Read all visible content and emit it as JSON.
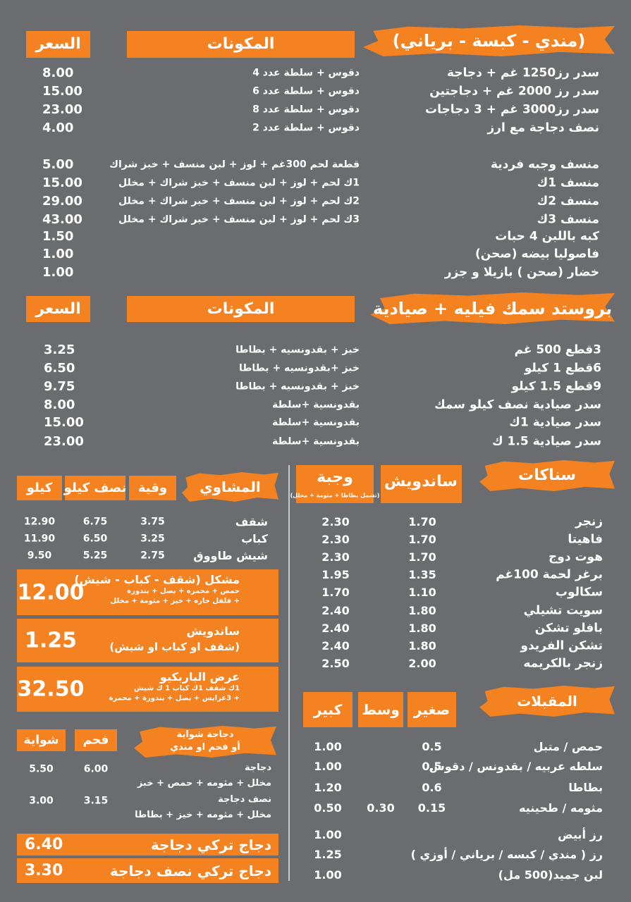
{
  "rice_section": {
    "title": "(مندي - كبسة - برياني)",
    "ingredients_header": "المكونات",
    "price_header": "السعر",
    "items": [
      {
        "name": "سدر رز1250 غم + دجاجة",
        "ingredients": "دقوس + سلطة عدد 4",
        "price": "8.00"
      },
      {
        "name": "سدر رز 2000 غم + دجاجتين",
        "ingredients": "دقوس + سلطة عدد 6",
        "price": "15.00"
      },
      {
        "name": "سدر رز3000 غم + 3 دجاجات",
        "ingredients": "دقوس + سلطة عدد 8",
        "price": "23.00"
      },
      {
        "name": "نصف دجاجة مع ارز",
        "ingredients": "دقوس + سلطة عدد 2",
        "price": "4.00"
      },
      {
        "name": "منسف وجبه فردية",
        "ingredients": "قطعة لحم 300غم + لوز + لبن منسف + خبز شراك",
        "price": "5.00"
      },
      {
        "name": "منسف 1ك",
        "ingredients": "1ك لحم + لوز + لبن منسف + خبز شراك + مخلل",
        "price": "15.00"
      },
      {
        "name": "منسف 2ك",
        "ingredients": "2ك لحم + لوز + لبن منسف + خبر شراك + مخلل",
        "price": "29.00"
      },
      {
        "name": "منسف 3ك",
        "ingredients": "3ك لحم + لوز + لبن منسف + خبر شراك + مخلل",
        "price": "43.00"
      },
      {
        "name": "كبه باللبن 4 حبات",
        "price": "1.50"
      },
      {
        "name": "فاصوليا بيضه (صحن)",
        "price": "1.00"
      },
      {
        "name": "خضار (صحن ) بازيلا و جزر",
        "price": "1.00"
      }
    ]
  },
  "fish_section": {
    "title": "بروستد سمك فيليه + صيادية",
    "ingredients_header": "المكونات",
    "price_header": "السعر",
    "items": [
      {
        "name": "3قطع 500 غم",
        "ingredients": "خبز + بقدونسيه + بطاطا",
        "price": "3.25"
      },
      {
        "name": "6قطع 1 كيلو",
        "ingredients": "خبز +بقدونسيه + بطاطا",
        "price": "6.50"
      },
      {
        "name": "9قطع 1.5 كيلو",
        "ingredients": "خبز + بقدونسيه + بطاطا",
        "price": "9.75"
      },
      {
        "name": "سدر صيادية نصف كيلو سمك",
        "ingredients": "بقدونسية +سلطة",
        "price": "8.00"
      },
      {
        "name": "سدر صيادية 1ك",
        "ingredients": "بقدونسية +سلطة",
        "price": "15.00"
      },
      {
        "name": "سدر صيادية 1.5 ك",
        "ingredients": "بقدونسية +سلطة",
        "price": "23.00"
      }
    ]
  },
  "grills": {
    "title": "المشاوي",
    "columns": [
      "وقية",
      "نصف كيلو",
      "كيلو"
    ],
    "items": [
      {
        "name": "شقف",
        "prices": [
          "3.75",
          "6.75",
          "12.90"
        ]
      },
      {
        "name": "كباب",
        "prices": [
          "3.25",
          "6.50",
          "11.90"
        ]
      },
      {
        "name": "شيش طاووق",
        "prices": [
          "2.75",
          "5.25",
          "9.50"
        ]
      }
    ]
  },
  "grill_offers": [
    {
      "title": "مشكل (شقف - كباب - شيش)",
      "details": [
        "حمص + محمره + بصل + بندورة",
        "+ فلفل حاره + خبز + مثومة + مخلل"
      ],
      "price": "12.00"
    },
    {
      "title": "ساندويش",
      "details": [
        "(شقف او كباب او شيش)"
      ],
      "price": "1.25"
    },
    {
      "title": "عرض الباربكيو",
      "details": [
        "1ك شقف 1ك كباب 1 ك شيش",
        "+ 3عرايس + بصل + بندورة + محمرة"
      ],
      "price": "32.50"
    }
  ],
  "grilled_chicken": {
    "title": "دجاجة شواية",
    "subtitle": "أو فحم او مندي",
    "columns": [
      "فحم",
      "شواية"
    ],
    "items": [
      {
        "name": "دجاجة",
        "details": "مخلل + مثومه + حمص + خبز",
        "prices": [
          "6.00",
          "5.50"
        ]
      },
      {
        "name": "نصف دجاجة",
        "details": "مخلل + مثومه + خيز + بطاطا",
        "prices": [
          "3.15",
          "3.00"
        ]
      }
    ]
  },
  "turkish_chicken": [
    {
      "name": "دجاج تركي دجاجة",
      "price": "6.40"
    },
    {
      "name": "دجاج تركي نصف دجاجة",
      "price": "3.30"
    }
  ],
  "snacks": {
    "title": "سناكات",
    "columns": [
      "ساندويش",
      "وجبة"
    ],
    "meal_note": "(تشمل بطاطا + مثومة + مخلل)",
    "items": [
      {
        "name": "زنجر",
        "prices": [
          "1.70",
          "2.30"
        ]
      },
      {
        "name": "فاهيتا",
        "prices": [
          "1.70",
          "2.30"
        ]
      },
      {
        "name": "هوت دوج",
        "prices": [
          "1.70",
          "2.30"
        ]
      },
      {
        "name": "برغر لحمة 100غم",
        "prices": [
          "1.35",
          "1.95"
        ]
      },
      {
        "name": "سكالوب",
        "prices": [
          "1.10",
          "1.70"
        ]
      },
      {
        "name": "سويت تشيلي",
        "prices": [
          "1.80",
          "2.40"
        ]
      },
      {
        "name": "بافلو تشكن",
        "prices": [
          "1.80",
          "2.40"
        ]
      },
      {
        "name": "تشكن الفريدو",
        "prices": [
          "1.80",
          "2.40"
        ]
      },
      {
        "name": "زنجر بالكريمه",
        "prices": [
          "2.00",
          "2.50"
        ]
      }
    ]
  },
  "appetizers": {
    "title": "المقبلات",
    "columns": {
      "small": "صغير",
      "medium": "وسط",
      "large": "كبير"
    },
    "items": [
      {
        "name": "حمص / متبل",
        "prices": {
          "small": "0.5",
          "large": "1.00"
        }
      },
      {
        "name": "سلطه عربيه / بقدونس / دقوس",
        "prices": {
          "small": "0.5",
          "large": "1.00"
        }
      },
      {
        "name": "بطاطا",
        "prices": {
          "small": "0.6",
          "large": "1.20"
        }
      },
      {
        "name": "مثومه / طحينيه",
        "prices": {
          "small": "0.15",
          "medium": "0.30",
          "large": "0.50"
        }
      },
      {
        "name": "رز أبيض",
        "prices": {
          "large": "1.00"
        }
      },
      {
        "name": "رز ( مندي / كبسه / برياني / أوزي )",
        "prices": {
          "large": "1.25"
        }
      },
      {
        "name": "لبن جميد(500 مل)",
        "prices": {
          "large": "1.00"
        }
      }
    ]
  }
}
